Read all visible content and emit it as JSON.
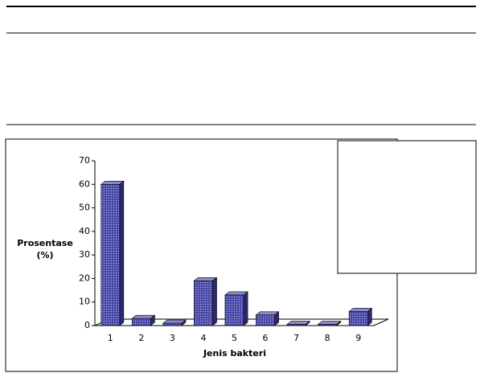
{
  "chart_data": {
    "type": "bar3d",
    "ylabel": "Prosentase\n(%)",
    "xlabel": "Jenis bakteri",
    "categories": [
      "1",
      "2",
      "3",
      "4",
      "5",
      "6",
      "7",
      "8",
      "9"
    ],
    "values": [
      60,
      3,
      1,
      19,
      13,
      4.5,
      0.5,
      0.5,
      6
    ],
    "color": "#4a4aa8",
    "ylim": [
      0,
      70
    ],
    "yticks": [
      0,
      10,
      20,
      30,
      40,
      50,
      60,
      70
    ]
  }
}
